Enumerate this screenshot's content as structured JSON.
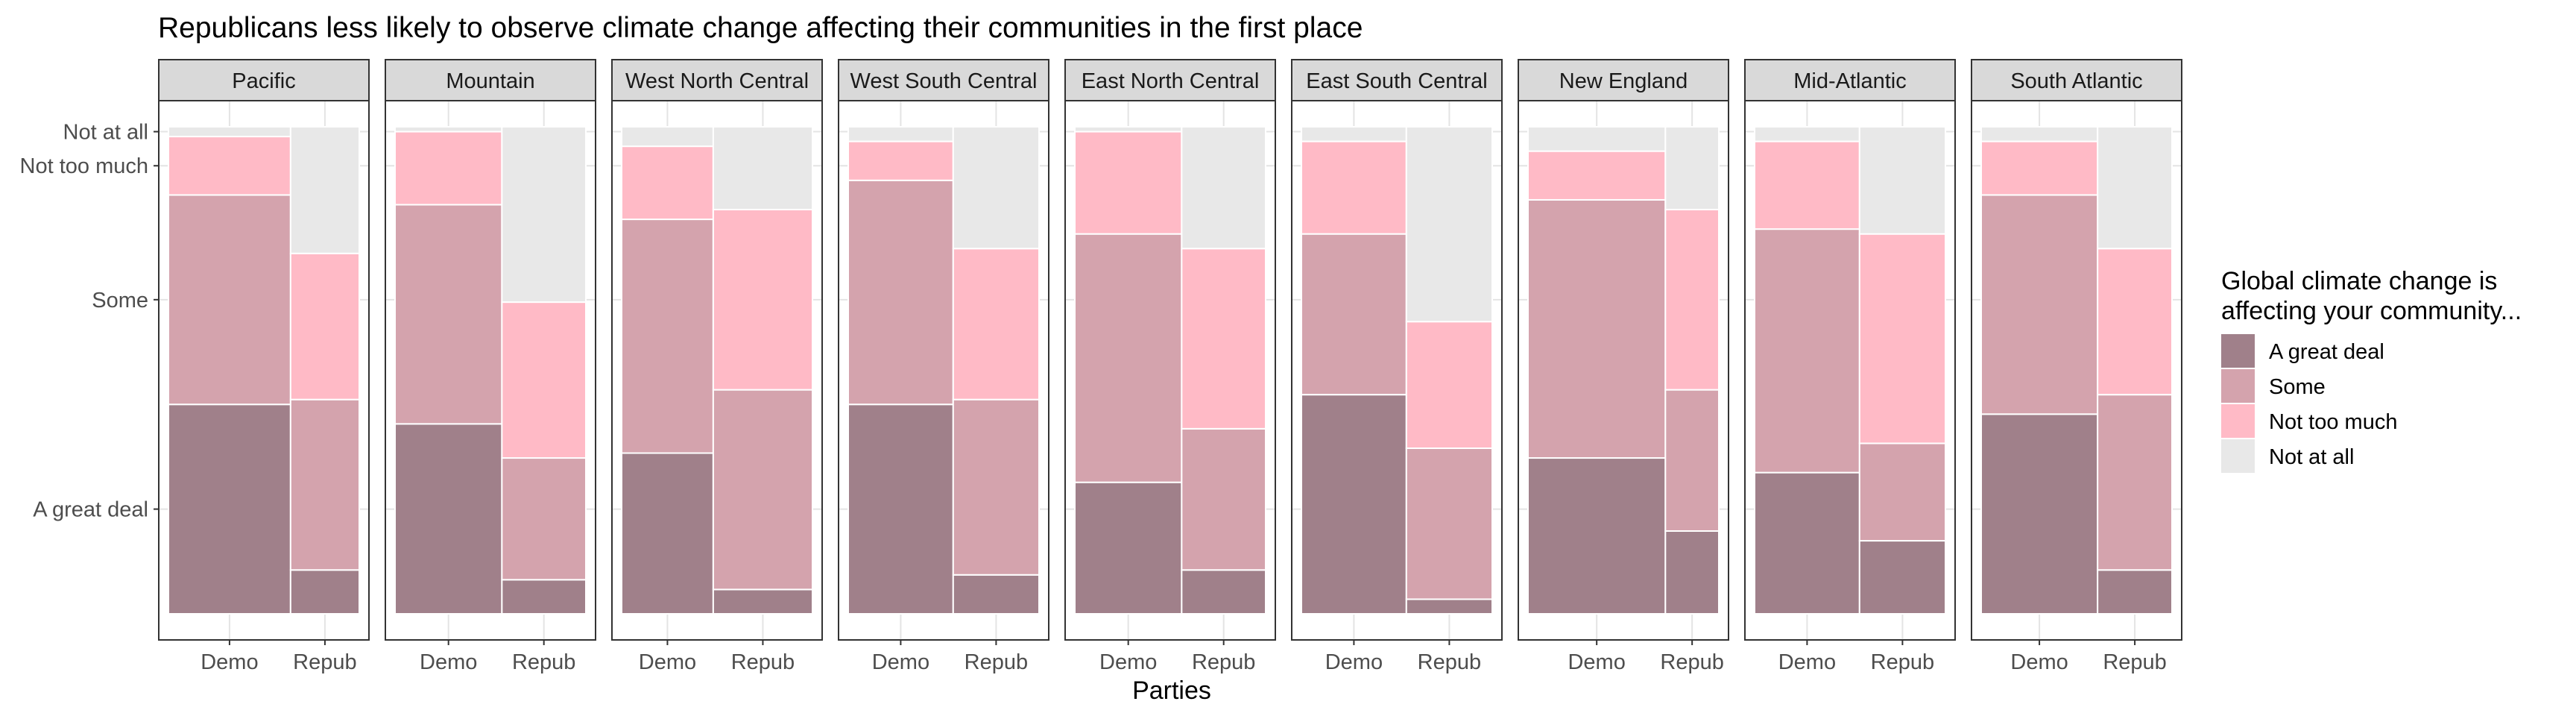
{
  "chart_data": {
    "type": "bar",
    "subtype": "stacked-mosaic-facets",
    "title": "Republicans less likely to observe climate change affecting their communities in the first place",
    "xlabel": "Parties",
    "ylabel": "",
    "y_tick_labels": [
      "A great deal",
      "Some",
      "Not too much",
      "Not at all"
    ],
    "categories": [
      "Demo",
      "Repub"
    ],
    "legend": {
      "title_lines": [
        "Global climate change is",
        " affecting your community..."
      ],
      "position": "right",
      "items": [
        {
          "name": "A great deal",
          "color": "#a0808a"
        },
        {
          "name": "Some",
          "color": "#d4a3ad"
        },
        {
          "name": "Not too much",
          "color": "#ffbac6"
        },
        {
          "name": "Not at all",
          "color": "#e8e8e8"
        }
      ]
    },
    "grid": true,
    "panels": [
      {
        "region": "Pacific",
        "demo_share": 0.64,
        "demo": {
          "great": 0.43,
          "some": 0.43,
          "nottoo": 0.12,
          "notatall": 0.02
        },
        "repub": {
          "great": 0.09,
          "some": 0.35,
          "nottoo": 0.3,
          "notatall": 0.26
        }
      },
      {
        "region": "Mountain",
        "demo_share": 0.56,
        "demo": {
          "great": 0.39,
          "some": 0.45,
          "nottoo": 0.15,
          "notatall": 0.01
        },
        "repub": {
          "great": 0.07,
          "some": 0.25,
          "nottoo": 0.32,
          "notatall": 0.36
        }
      },
      {
        "region": "West North Central",
        "demo_share": 0.48,
        "demo": {
          "great": 0.33,
          "some": 0.48,
          "nottoo": 0.15,
          "notatall": 0.04
        },
        "repub": {
          "great": 0.05,
          "some": 0.41,
          "nottoo": 0.37,
          "notatall": 0.17
        }
      },
      {
        "region": "West South Central",
        "demo_share": 0.55,
        "demo": {
          "great": 0.43,
          "some": 0.46,
          "nottoo": 0.08,
          "notatall": 0.03
        },
        "repub": {
          "great": 0.08,
          "some": 0.36,
          "nottoo": 0.31,
          "notatall": 0.25
        }
      },
      {
        "region": "East North Central",
        "demo_share": 0.56,
        "demo": {
          "great": 0.27,
          "some": 0.51,
          "nottoo": 0.21,
          "notatall": 0.01
        },
        "repub": {
          "great": 0.09,
          "some": 0.29,
          "nottoo": 0.37,
          "notatall": 0.25
        }
      },
      {
        "region": "East South Central",
        "demo_share": 0.55,
        "demo": {
          "great": 0.45,
          "some": 0.33,
          "nottoo": 0.19,
          "notatall": 0.03
        },
        "repub": {
          "great": 0.03,
          "some": 0.31,
          "nottoo": 0.26,
          "notatall": 0.4
        }
      },
      {
        "region": "New England",
        "demo_share": 0.72,
        "demo": {
          "great": 0.32,
          "some": 0.53,
          "nottoo": 0.1,
          "notatall": 0.05
        },
        "repub": {
          "great": 0.17,
          "some": 0.29,
          "nottoo": 0.37,
          "notatall": 0.17
        }
      },
      {
        "region": "Mid-Atlantic",
        "demo_share": 0.55,
        "demo": {
          "great": 0.29,
          "some": 0.5,
          "nottoo": 0.18,
          "notatall": 0.03
        },
        "repub": {
          "great": 0.15,
          "some": 0.2,
          "nottoo": 0.43,
          "notatall": 0.22
        }
      },
      {
        "region": "South Atlantic",
        "demo_share": 0.61,
        "demo": {
          "great": 0.41,
          "some": 0.45,
          "nottoo": 0.11,
          "notatall": 0.03
        },
        "repub": {
          "great": 0.09,
          "some": 0.36,
          "nottoo": 0.3,
          "notatall": 0.25
        }
      }
    ]
  }
}
